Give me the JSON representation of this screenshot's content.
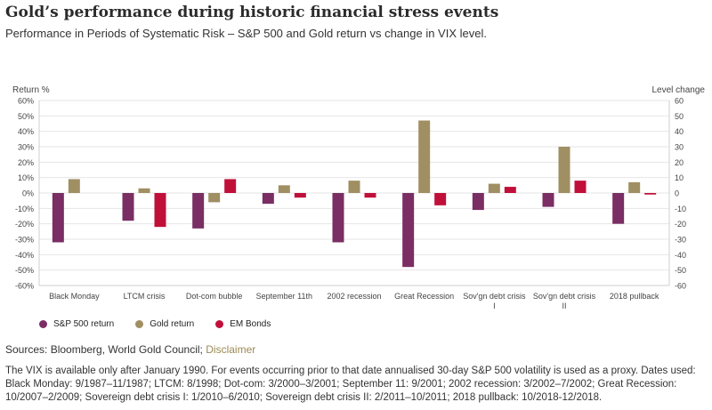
{
  "header": {
    "title": "Gold’s performance during historic financial stress events",
    "subtitle": "Performance in Periods of Systematic Risk – S&P 500 and Gold return vs change in VIX level."
  },
  "colors": {
    "sp500": "#7a2e63",
    "gold": "#a08f63",
    "em_bonds": "#c0103a",
    "grid": "#e6e6e6",
    "axis_text": "#444444"
  },
  "legend": {
    "items": [
      {
        "label": "S&P 500 return",
        "color": "#7a2e63"
      },
      {
        "label": "Gold return",
        "color": "#a08f63"
      },
      {
        "label": "EM Bonds",
        "color": "#c0103a"
      }
    ]
  },
  "footer": {
    "sources_prefix": "Sources: Bloomberg, World Gold Council;",
    "disclaimer_link": "Disclaimer",
    "note": "The VIX is available only after January 1990. For events occurring prior to that date annualised 30-day S&P 500 volatility is used as a proxy. Dates used: Black Monday: 9/1987–11/1987; LTCM: 8/1998; Dot-com: 3/2000–3/2001; September 11: 9/2001; 2002 recession: 3/2002–7/2002; Great Recession: 10/2007–2/2009; Sovereign debt crisis I: 1/2010–6/2010; Sovereign debt crisis II: 2/2011–10/2011; 2018 pullback: 10/2018-12/2018."
  },
  "chart_data": {
    "type": "bar",
    "ylabel_left": "Return %",
    "ylabel_right": "Level change",
    "ylim": [
      -60,
      60
    ],
    "ylim_right": [
      -60,
      60
    ],
    "yticks_left": [
      "60%",
      "50%",
      "40%",
      "30%",
      "20%",
      "10%",
      "0%",
      "-10%",
      "-20%",
      "-30%",
      "-40%",
      "-50%",
      "-60%"
    ],
    "yticks_right": [
      "60",
      "50",
      "40",
      "30",
      "20",
      "10",
      "0",
      "-10",
      "-20",
      "-30",
      "-40",
      "-50",
      "-60"
    ],
    "grid": true,
    "legend_position": "bottom-left",
    "categories": [
      [
        "Black Monday"
      ],
      [
        "LTCM crisis"
      ],
      [
        "Dot-com bubble"
      ],
      [
        "September 11th"
      ],
      [
        "2002 recession"
      ],
      [
        "Great Recession"
      ],
      [
        "Sov'gn debt crisis",
        "I"
      ],
      [
        "Sov'gn debt crisis",
        "II"
      ],
      [
        "2018 pullback"
      ]
    ],
    "series": [
      {
        "name": "S&P 500 return",
        "values": [
          -32,
          -18,
          -23,
          -7,
          -32,
          -48,
          -11,
          -9,
          -20
        ]
      },
      {
        "name": "Gold return",
        "values": [
          9,
          3,
          -6,
          5,
          8,
          47,
          6,
          30,
          7
        ]
      },
      {
        "name": "EM Bonds",
        "values": [
          null,
          -22,
          9,
          -3,
          -3,
          -8,
          4,
          8,
          -1
        ]
      }
    ]
  }
}
